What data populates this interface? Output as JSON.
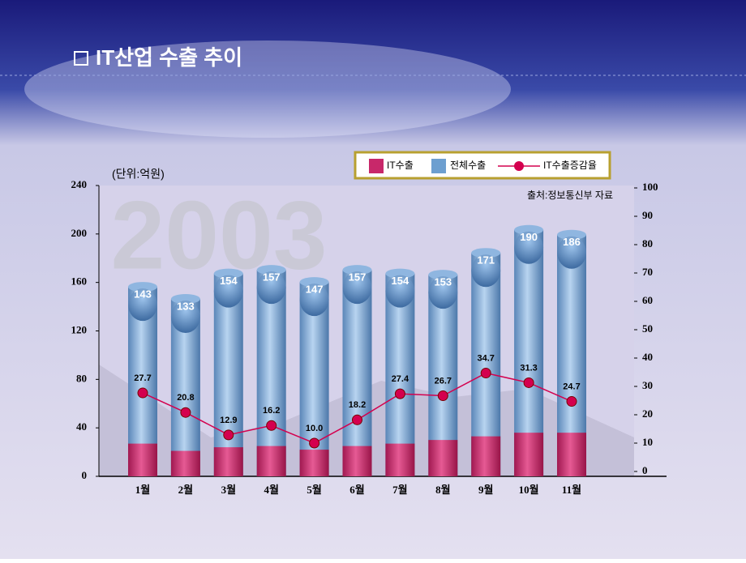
{
  "chart_data": {
    "type": "bar",
    "title": "IT산업 수출 추이",
    "unit_label": "(단위:억원)",
    "source": "출처:정보통신부 자료",
    "watermark": "2003",
    "categories": [
      "1월",
      "2월",
      "3월",
      "4월",
      "5월",
      "6월",
      "7월",
      "8월",
      "9월",
      "10월",
      "11월"
    ],
    "series": [
      {
        "name": "IT수출",
        "color": "#c8286a",
        "values": [
          27,
          21,
          24,
          25,
          22,
          25,
          27,
          30,
          33,
          36,
          36
        ]
      },
      {
        "name": "전체수출",
        "color": "#6d9fd0",
        "values": [
          143,
          133,
          154,
          157,
          147,
          157,
          154,
          153,
          171,
          190,
          186
        ]
      },
      {
        "name": "IT수출증감율",
        "color": "#d4004e",
        "axis": "y2",
        "values": [
          27.7,
          20.8,
          12.9,
          16.2,
          10.0,
          18.2,
          27.4,
          26.7,
          34.7,
          31.3,
          24.7
        ],
        "value_labels": [
          "27.7",
          "20.8",
          "12.9",
          "16.2",
          "10.0",
          "18.2",
          "27.4",
          "26.7",
          "34.7",
          "31.3",
          "24.7"
        ]
      }
    ],
    "ylim": [
      0,
      240
    ],
    "yticks": [
      0,
      40,
      80,
      120,
      160,
      200,
      240
    ],
    "y2lim": [
      0,
      100
    ],
    "y2ticks": [
      0,
      10,
      20,
      30,
      40,
      50,
      60,
      70,
      80,
      90,
      100
    ]
  }
}
